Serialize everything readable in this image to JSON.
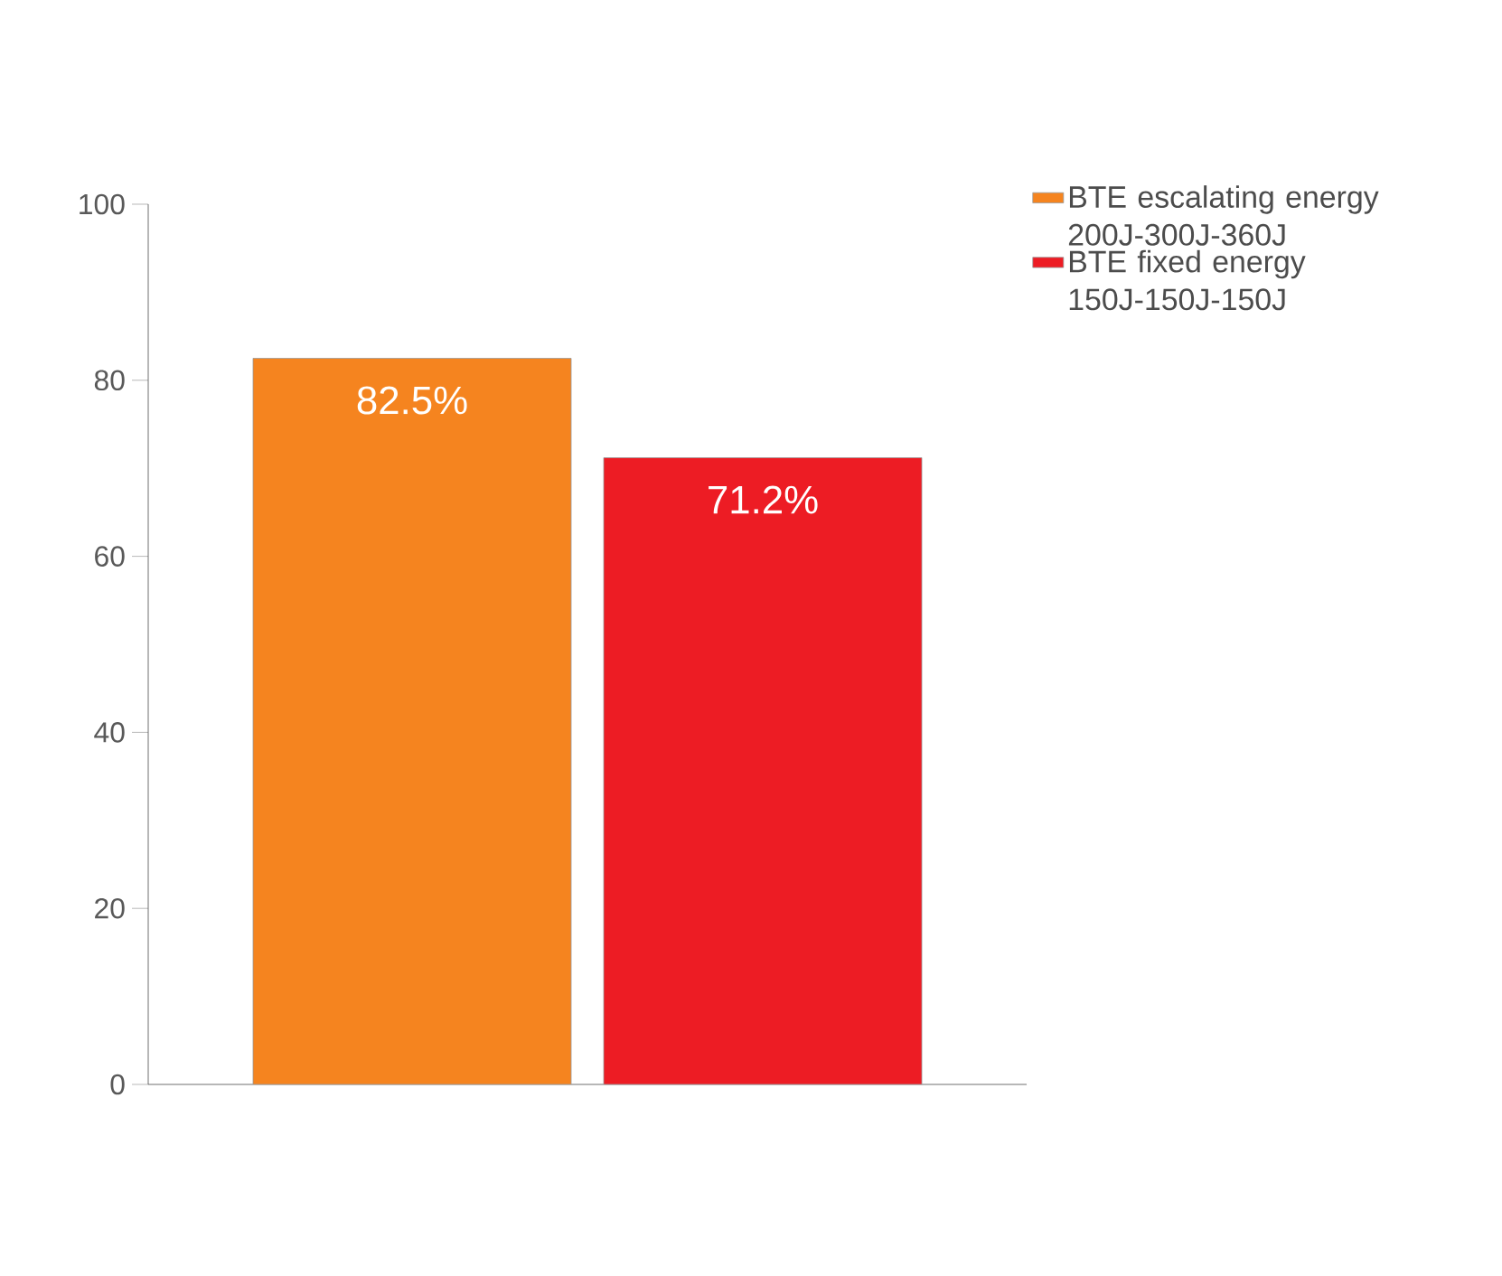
{
  "chart_data": {
    "type": "bar",
    "categories": [
      null
    ],
    "series": [
      {
        "name": "BTE escalating energy 200J-300J-360J",
        "color": "#f5841f",
        "values": [
          82.5
        ],
        "value_labels": [
          "82.5%"
        ]
      },
      {
        "name": "BTE fixed energy 150J-150J-150J",
        "color": "#ed1c24",
        "values": [
          71.2
        ],
        "value_labels": [
          "71.2%"
        ]
      }
    ],
    "ylim": [
      0,
      100
    ],
    "yticks": [
      0,
      20,
      40,
      60,
      80,
      100
    ],
    "legend": "top right",
    "grid": false
  }
}
